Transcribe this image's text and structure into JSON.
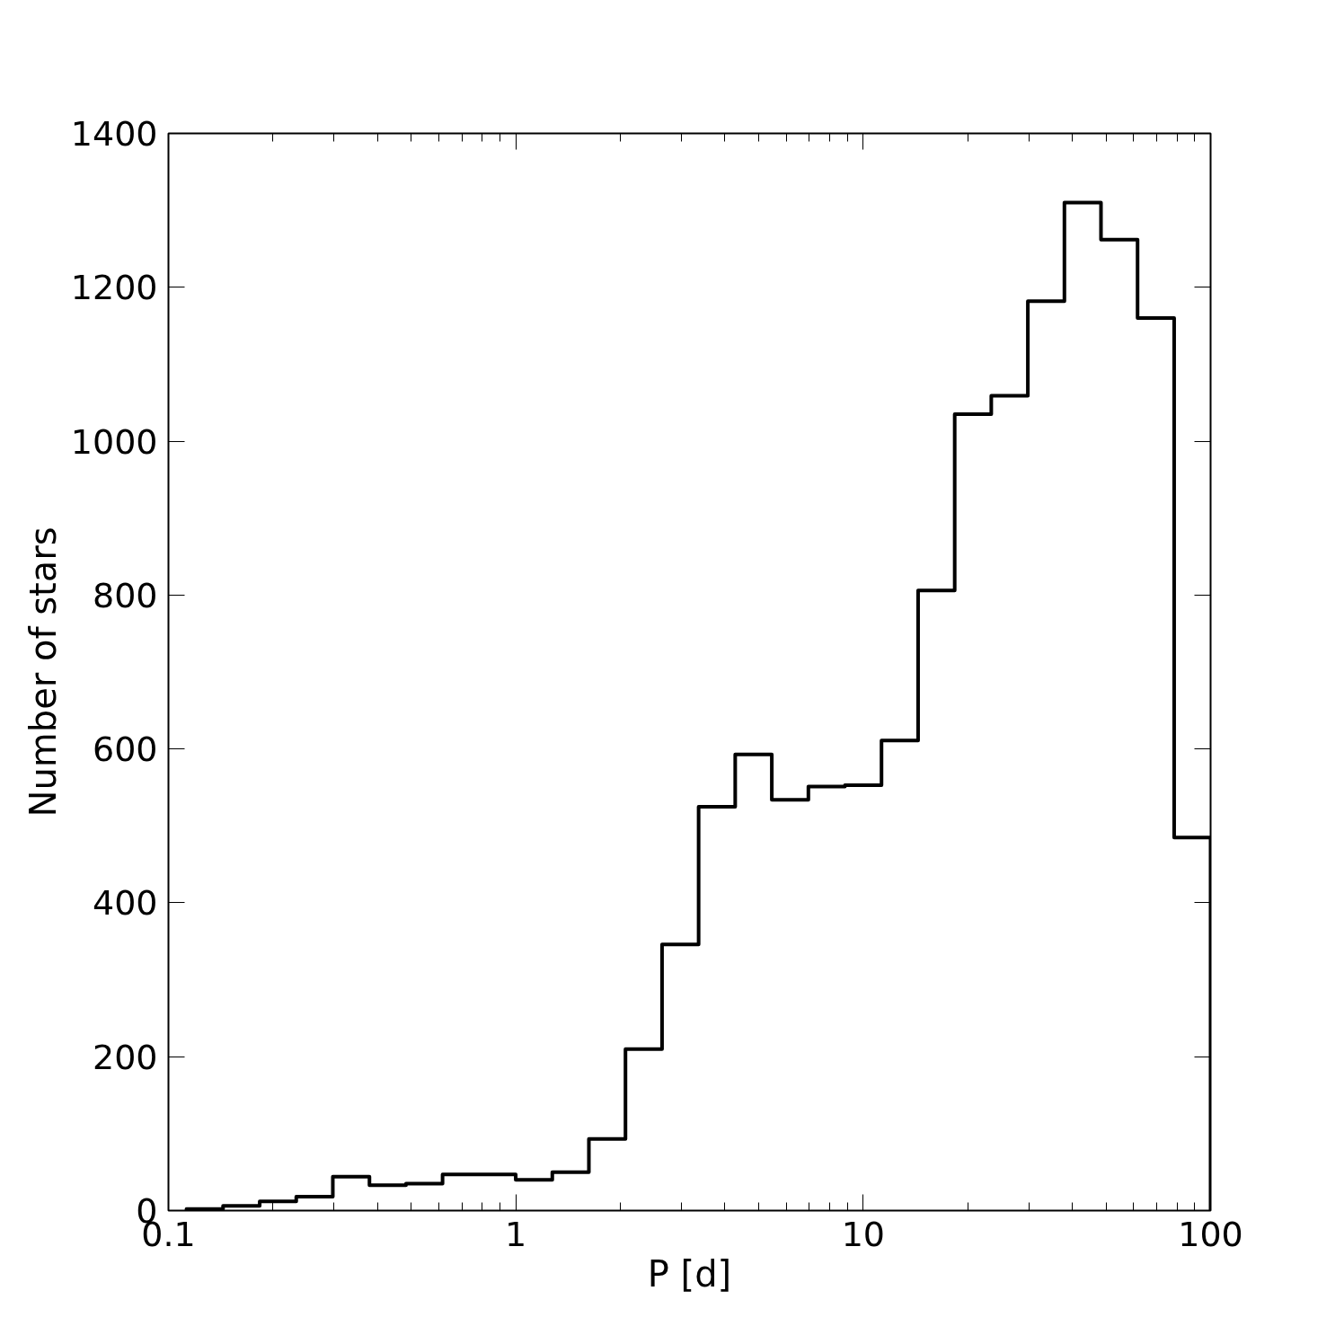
{
  "chart_data": {
    "type": "histogram",
    "xlabel": "P [d]",
    "ylabel": "Number of stars",
    "bins": [
      0.1127,
      0.1436,
      0.1831,
      0.2333,
      0.2973,
      0.379,
      0.4829,
      0.6153,
      0.7843,
      0.9993,
      1.2735,
      1.623,
      2.0685,
      2.636,
      3.359,
      4.281,
      5.456,
      6.953,
      8.859,
      11.29,
      14.39,
      18.34,
      23.37,
      29.78,
      37.95,
      48.36,
      61.63,
      78.55,
      100
    ],
    "values": [
      2,
      6,
      12,
      18,
      44,
      33,
      35,
      47,
      47,
      40,
      50,
      93,
      210,
      346,
      525,
      593,
      534,
      551,
      553,
      611,
      806,
      1035,
      1059,
      1182,
      1310,
      1262,
      1160,
      485
    ],
    "color": "#000000",
    "log": "x",
    "xlim": [
      0.1,
      100
    ],
    "xticks": [
      0.1,
      1,
      10,
      100
    ],
    "ylim": [
      0,
      1400
    ],
    "yticks": [
      0,
      200,
      400,
      600,
      800,
      1000,
      1200,
      1400
    ],
    "grid": false
  }
}
